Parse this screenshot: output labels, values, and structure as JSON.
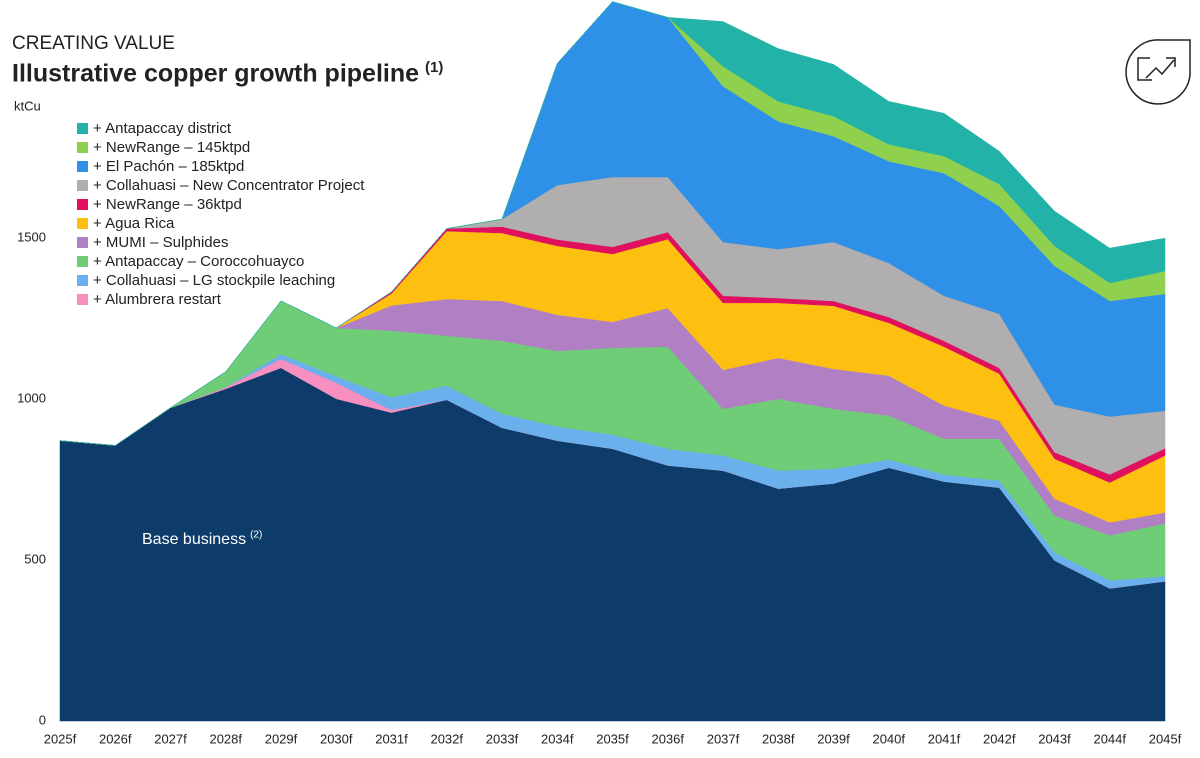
{
  "chart_data": {
    "type": "stacked-area",
    "kicker": "CREATING VALUE",
    "title": "Illustrative copper growth pipeline",
    "title_note": "(1)",
    "y_label": "ktCu",
    "annotation": "Base business",
    "annotation_note": "(2)",
    "categories": [
      "2025f",
      "2026f",
      "2027f",
      "2028f",
      "2029f",
      "2030f",
      "2031f",
      "2032f",
      "2033f",
      "2034f",
      "2035f",
      "2036f",
      "2037f",
      "2038f",
      "2039f",
      "2040f",
      "2041f",
      "2042f",
      "2043f",
      "2044f",
      "2045f"
    ],
    "ylim": [
      0,
      2240
    ],
    "yticks": [
      0,
      500,
      1000,
      1500
    ],
    "series": [
      {
        "name": "Base business",
        "color": "#0d3c6b",
        "values": [
          871,
          856,
          973,
          1032,
          1097,
          1001,
          958,
          998,
          911,
          871,
          846,
          794,
          778,
          722,
          738,
          787,
          744,
          725,
          499,
          412,
          434
        ]
      },
      {
        "name": "+ Alumbrera restart",
        "color": "#f78fc0",
        "values": [
          0,
          0,
          0,
          5,
          28,
          50,
          8,
          0,
          0,
          0,
          0,
          0,
          0,
          0,
          0,
          0,
          0,
          0,
          0,
          0,
          0
        ]
      },
      {
        "name": "+ Collahuasi – LG stockpile leaching",
        "color": "#6ab0ec",
        "values": [
          0,
          0,
          0,
          0,
          15,
          20,
          40,
          44,
          44,
          44,
          44,
          52,
          47,
          56,
          46,
          25,
          22,
          22,
          25,
          25,
          16
        ]
      },
      {
        "name": "+ Antapaccay – Coroccohuayco",
        "color": "#6fcd78",
        "values": [
          0,
          0,
          0,
          48,
          165,
          150,
          207,
          155,
          226,
          235,
          269,
          317,
          145,
          223,
          186,
          137,
          111,
          130,
          115,
          140,
          164
        ]
      },
      {
        "name": "+ MUMI – Sulphides",
        "color": "#b07fc4",
        "values": [
          0,
          0,
          0,
          0,
          0,
          0,
          78,
          114,
          124,
          112,
          81,
          120,
          121,
          127,
          124,
          124,
          103,
          56,
          52,
          40,
          34
        ]
      },
      {
        "name": "+ Agua Rica",
        "color": "#fdc010",
        "values": [
          0,
          0,
          0,
          0,
          0,
          0,
          37,
          211,
          211,
          214,
          211,
          214,
          208,
          171,
          196,
          164,
          183,
          146,
          124,
          124,
          177
        ]
      },
      {
        "name": "+ NewRange – 36ktpd",
        "color": "#e0105f",
        "values": [
          0,
          0,
          0,
          0,
          0,
          0,
          5,
          8,
          20,
          20,
          22,
          22,
          22,
          15,
          15,
          18,
          18,
          18,
          20,
          25,
          22
        ]
      },
      {
        "name": "+ Collahuasi – New Concentrator Project",
        "color": "#b0aeae",
        "values": [
          0,
          0,
          0,
          0,
          0,
          0,
          0,
          0,
          23,
          169,
          217,
          171,
          167,
          152,
          183,
          168,
          140,
          168,
          148,
          180,
          117
        ]
      },
      {
        "name": "+ El Pachón – 185ktpd",
        "color": "#2e90e6",
        "values": [
          0,
          0,
          0,
          0,
          0,
          0,
          0,
          0,
          0,
          378,
          545,
          496,
          484,
          397,
          329,
          316,
          381,
          335,
          431,
          359,
          363
        ]
      },
      {
        "name": "+ NewRange – 145ktpd",
        "color": "#8fd14f",
        "values": [
          0,
          0,
          0,
          0,
          0,
          0,
          0,
          0,
          0,
          0,
          0,
          0,
          62,
          62,
          62,
          53,
          53,
          68,
          62,
          56,
          71
        ]
      },
      {
        "name": "+ Antapaccay district",
        "color": "#22b2a8",
        "values": [
          0,
          0,
          0,
          0,
          0,
          0,
          0,
          0,
          0,
          0,
          0,
          0,
          139,
          164,
          161,
          133,
          133,
          102,
          108,
          108,
          102
        ]
      }
    ]
  }
}
